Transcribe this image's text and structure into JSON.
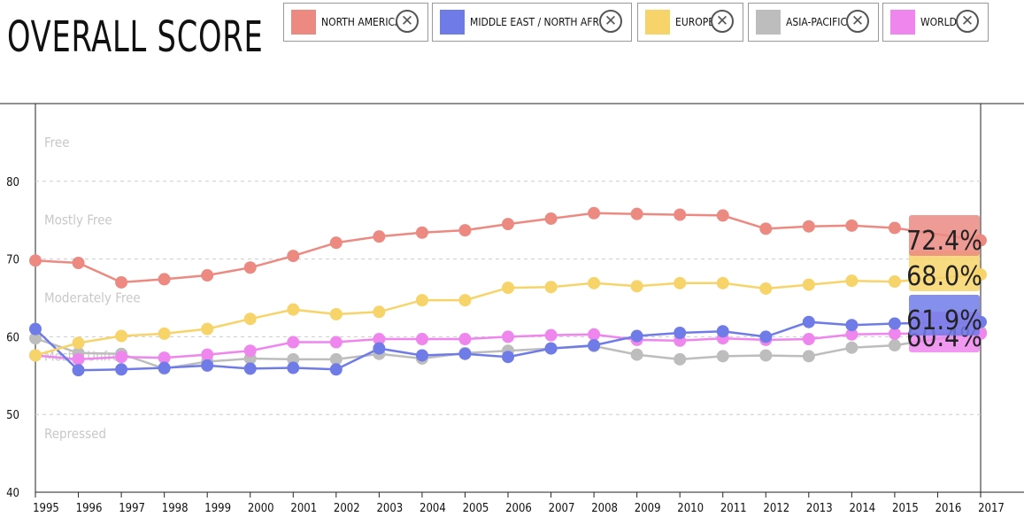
{
  "title": "OVERALL SCORE",
  "legend": [
    {
      "label": "NORTH AMERICA",
      "color": "#ec8a82",
      "remove_icon": "close-icon"
    },
    {
      "label": "MIDDLE EAST / NORTH AFRICA",
      "color": "#6f7ce8",
      "remove_icon": "close-icon"
    },
    {
      "label": "EUROPE",
      "color": "#f7d46a",
      "remove_icon": "close-icon"
    },
    {
      "label": "ASIA-PACIFIC",
      "color": "#bdbdbd",
      "remove_icon": "close-icon"
    },
    {
      "label": "WORLD",
      "color": "#ee86ee",
      "remove_icon": "close-icon"
    }
  ],
  "chart_data": {
    "type": "line",
    "title": "OVERALL SCORE",
    "x": [
      1995,
      1996,
      1997,
      1998,
      1999,
      2000,
      2001,
      2002,
      2003,
      2004,
      2005,
      2006,
      2007,
      2008,
      2009,
      2010,
      2011,
      2012,
      2013,
      2014,
      2015,
      2016,
      2017
    ],
    "xlabel": "",
    "ylabel": "",
    "ylim": [
      40,
      90
    ],
    "yticks": [
      40,
      50,
      60,
      70,
      80
    ],
    "grid": true,
    "bands": [
      "Free",
      "Mostly Free",
      "Moderately Free",
      "Mostly Unfree",
      "Repressed"
    ],
    "series": [
      {
        "name": "NORTH AMERICA",
        "color": "#ec8a82",
        "end_label": "72.4%",
        "values": [
          69.8,
          69.5,
          67.0,
          67.4,
          67.9,
          68.9,
          70.4,
          72.1,
          72.9,
          73.4,
          73.7,
          74.5,
          75.2,
          75.9,
          75.8,
          75.7,
          75.6,
          73.9,
          74.2,
          74.3,
          74.0,
          null,
          72.4
        ]
      },
      {
        "name": "MIDDLE EAST / NORTH AFRICA",
        "color": "#6f7ce8",
        "end_label": "61.9%",
        "values": [
          61.0,
          55.7,
          55.8,
          56.0,
          56.3,
          55.9,
          56.0,
          55.8,
          58.5,
          57.6,
          57.8,
          57.4,
          58.5,
          58.9,
          60.1,
          60.5,
          60.7,
          60.0,
          61.9,
          61.5,
          61.7,
          null,
          61.9
        ]
      },
      {
        "name": "EUROPE",
        "color": "#f7d46a",
        "end_label": "68.0%",
        "values": [
          57.6,
          59.2,
          60.1,
          60.4,
          61.0,
          62.3,
          63.5,
          62.9,
          63.2,
          64.7,
          64.7,
          66.3,
          66.4,
          66.9,
          66.5,
          66.9,
          66.9,
          66.2,
          66.7,
          67.2,
          67.1,
          null,
          68.0
        ]
      },
      {
        "name": "ASIA-PACIFIC",
        "color": "#bdbdbd",
        "end_label": "",
        "values": [
          59.8,
          57.9,
          57.8,
          55.9,
          56.8,
          57.2,
          57.1,
          57.1,
          57.8,
          57.2,
          57.9,
          58.2,
          58.5,
          58.8,
          57.7,
          57.1,
          57.5,
          57.6,
          57.5,
          58.6,
          58.9,
          null,
          60.6
        ]
      },
      {
        "name": "WORLD",
        "color": "#ee86ee",
        "end_label": "60.4%",
        "values": [
          57.6,
          57.1,
          57.4,
          57.3,
          57.7,
          58.2,
          59.3,
          59.3,
          59.7,
          59.7,
          59.7,
          60.0,
          60.2,
          60.3,
          59.6,
          59.5,
          59.8,
          59.6,
          59.7,
          60.3,
          60.4,
          null,
          60.4
        ]
      }
    ]
  }
}
